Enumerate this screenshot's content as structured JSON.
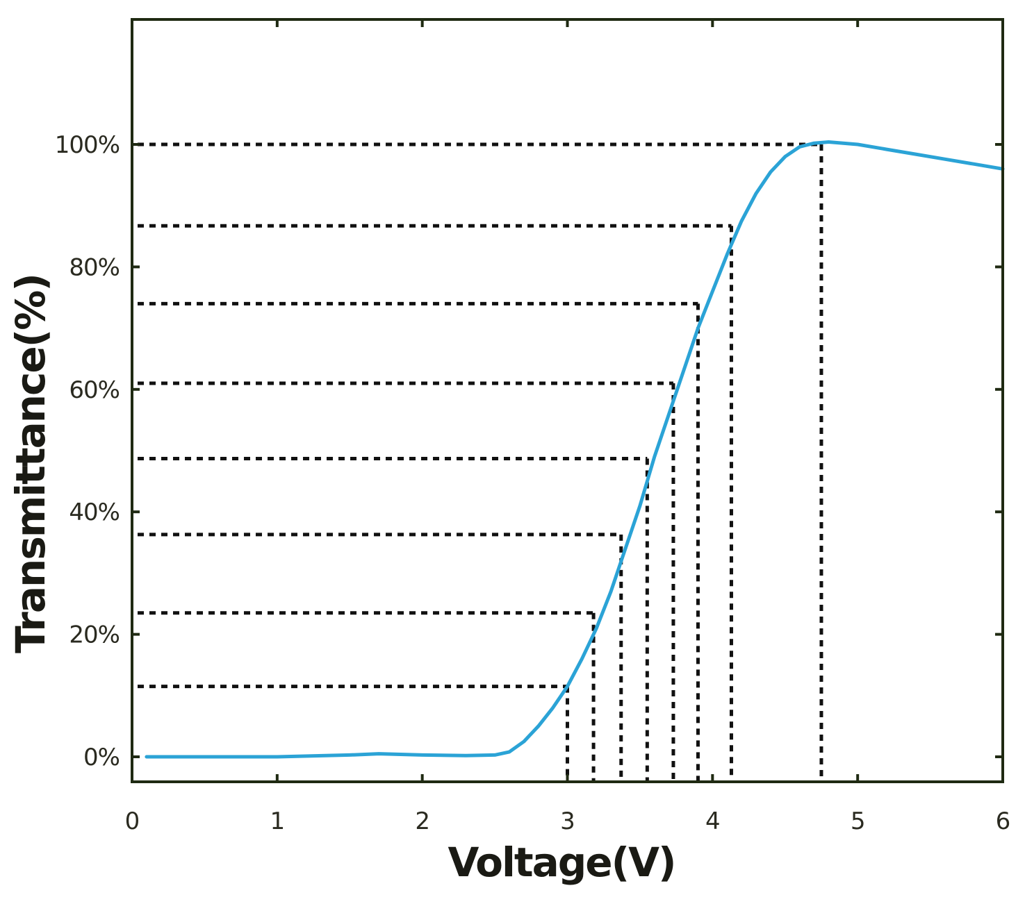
{
  "chart_data": {
    "type": "line",
    "title": "",
    "xlabel": "Voltage(V)",
    "ylabel": "Transmittance(%)",
    "xlim": [
      0,
      6
    ],
    "ylim": [
      -2,
      125
    ],
    "x_ticks": [
      0,
      1,
      2,
      3,
      4,
      5,
      6
    ],
    "x_tick_labels": [
      "0",
      "1",
      "2",
      "3",
      "4",
      "5",
      "6"
    ],
    "y_ticks": [
      0,
      20,
      40,
      60,
      80,
      100
    ],
    "y_tick_labels": [
      "0%",
      "20%",
      "40%",
      "60%",
      "80%",
      "100%"
    ],
    "grid": false,
    "line_color": "#2ba3d6",
    "series": [
      {
        "x": [
          0.1,
          0.5,
          1.0,
          1.5,
          1.7,
          2.0,
          2.3,
          2.5,
          2.6,
          2.7,
          2.8,
          2.9,
          3.0,
          3.1,
          3.2,
          3.3,
          3.4,
          3.5,
          3.6,
          3.7,
          3.8,
          3.9,
          4.0,
          4.1,
          4.2,
          4.3,
          4.4,
          4.5,
          4.6,
          4.7,
          4.8,
          5.0,
          5.2,
          5.4,
          5.6,
          5.8,
          6.0
        ],
        "y": [
          0,
          0,
          0,
          0.3,
          0.5,
          0.3,
          0.2,
          0.3,
          0.8,
          2.5,
          5.0,
          8.0,
          11.5,
          16.0,
          21.0,
          27.0,
          34.0,
          41.0,
          49.0,
          56.0,
          63.0,
          70.0,
          76.0,
          82.0,
          87.5,
          92.0,
          95.5,
          98.0,
          99.6,
          100.2,
          100.4,
          100.0,
          99.2,
          98.4,
          97.6,
          96.8,
          96.0
        ]
      }
    ],
    "guide_points": [
      {
        "x": 3.0,
        "y": 11.5
      },
      {
        "x": 3.18,
        "y": 23.5
      },
      {
        "x": 3.37,
        "y": 36.3
      },
      {
        "x": 3.55,
        "y": 48.7
      },
      {
        "x": 3.73,
        "y": 61.0
      },
      {
        "x": 3.9,
        "y": 74.0
      },
      {
        "x": 4.13,
        "y": 86.7
      },
      {
        "x": 4.75,
        "y": 100
      }
    ]
  }
}
